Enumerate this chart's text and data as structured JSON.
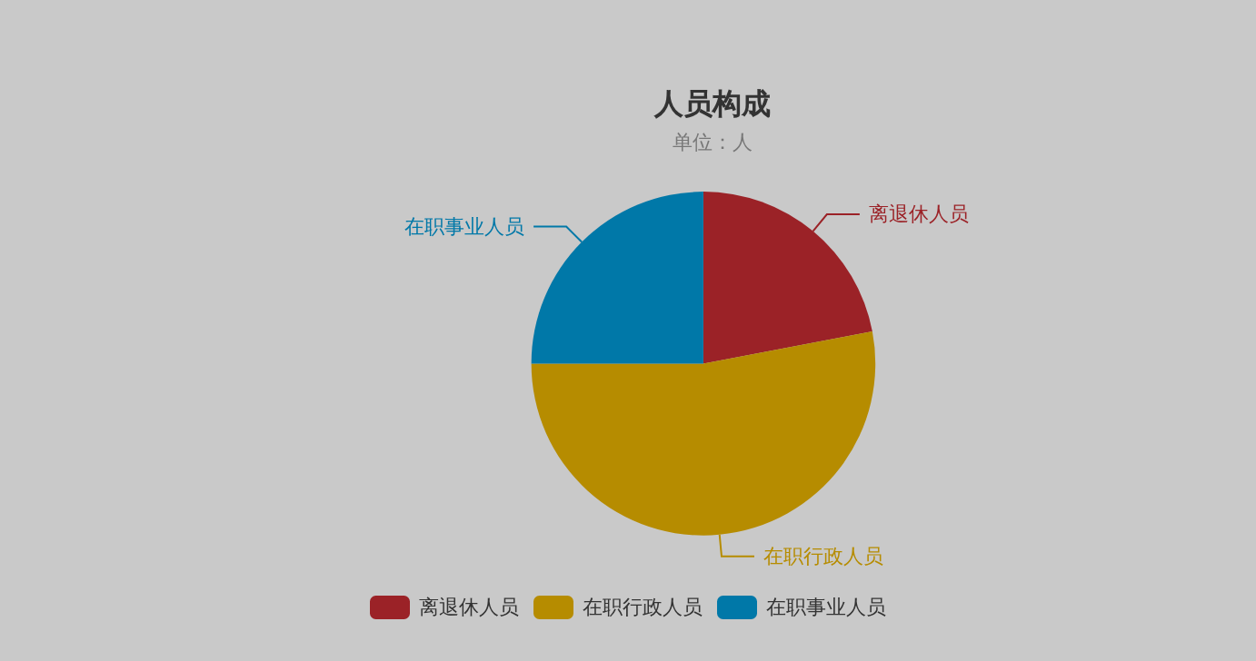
{
  "chart_data": {
    "type": "pie",
    "title": "人员构成",
    "subtitle": "单位：人",
    "categories": [
      "离退休人员",
      "在职行政人员",
      "在职事业人员"
    ],
    "values": [
      22,
      53,
      25
    ],
    "colors": [
      "#9b2227",
      "#b68c00",
      "#0078a8"
    ],
    "legend": "bottom"
  }
}
